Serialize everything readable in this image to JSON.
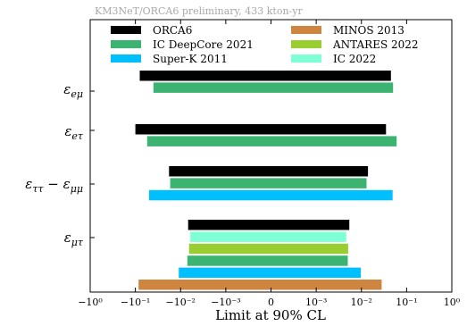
{
  "chart_data": {
    "type": "bar",
    "orientation": "horizontal-interval",
    "title": "KM3NeT/ORCA6 preliminary, 433 kton-yr",
    "xlabel": "Limit at 90% CL",
    "x_scale": "symlog",
    "xlim": [
      -1,
      1
    ],
    "x_tick_labels": [
      "−10⁰",
      "−10⁻¹",
      "−10⁻²",
      "−10⁻³",
      "0",
      "10⁻³",
      "10⁻²",
      "10⁻¹",
      "10⁰"
    ],
    "x_ticks": [
      -1,
      -0.1,
      -0.01,
      -0.001,
      0,
      0.001,
      0.01,
      0.1,
      1
    ],
    "legend_placement": "top",
    "series": [
      {
        "name": "ORCA6",
        "color": "#000000"
      },
      {
        "name": "MINOS 2013",
        "color": "#cd853f"
      },
      {
        "name": "IC DeepCore 2021",
        "color": "#3cb371"
      },
      {
        "name": "ANTARES 2022",
        "color": "#9acd32"
      },
      {
        "name": "Super-K 2011",
        "color": "#00bfff"
      },
      {
        "name": "IC 2022",
        "color": "#7fffd4"
      }
    ],
    "categories": [
      {
        "label": "ε_eμ",
        "limits": [
          {
            "series": "ORCA6",
            "low": -0.08,
            "high": 0.045
          },
          {
            "series": "IC DeepCore 2021",
            "low": -0.04,
            "high": 0.05
          }
        ]
      },
      {
        "label": "ε_eτ",
        "limits": [
          {
            "series": "ORCA6",
            "low": -0.1,
            "high": 0.035
          },
          {
            "series": "IC DeepCore 2021",
            "low": -0.055,
            "high": 0.06
          }
        ]
      },
      {
        "label": "ε_ττ − ε_μμ",
        "limits": [
          {
            "series": "ORCA6",
            "low": -0.018,
            "high": 0.014
          },
          {
            "series": "IC DeepCore 2021",
            "low": -0.017,
            "high": 0.013
          },
          {
            "series": "Super-K 2011",
            "low": -0.05,
            "high": 0.049
          }
        ]
      },
      {
        "label": "ε_μτ",
        "limits": [
          {
            "series": "ORCA6",
            "low": -0.0068,
            "high": 0.0054
          },
          {
            "series": "IC 2022",
            "low": -0.0061,
            "high": 0.0046
          },
          {
            "series": "ANTARES 2022",
            "low": -0.0065,
            "high": 0.0051
          },
          {
            "series": "IC DeepCore 2021",
            "low": -0.0071,
            "high": 0.005
          },
          {
            "series": "Super-K 2011",
            "low": -0.011,
            "high": 0.0097
          },
          {
            "series": "MINOS 2013",
            "low": -0.085,
            "high": 0.028
          }
        ]
      }
    ]
  }
}
